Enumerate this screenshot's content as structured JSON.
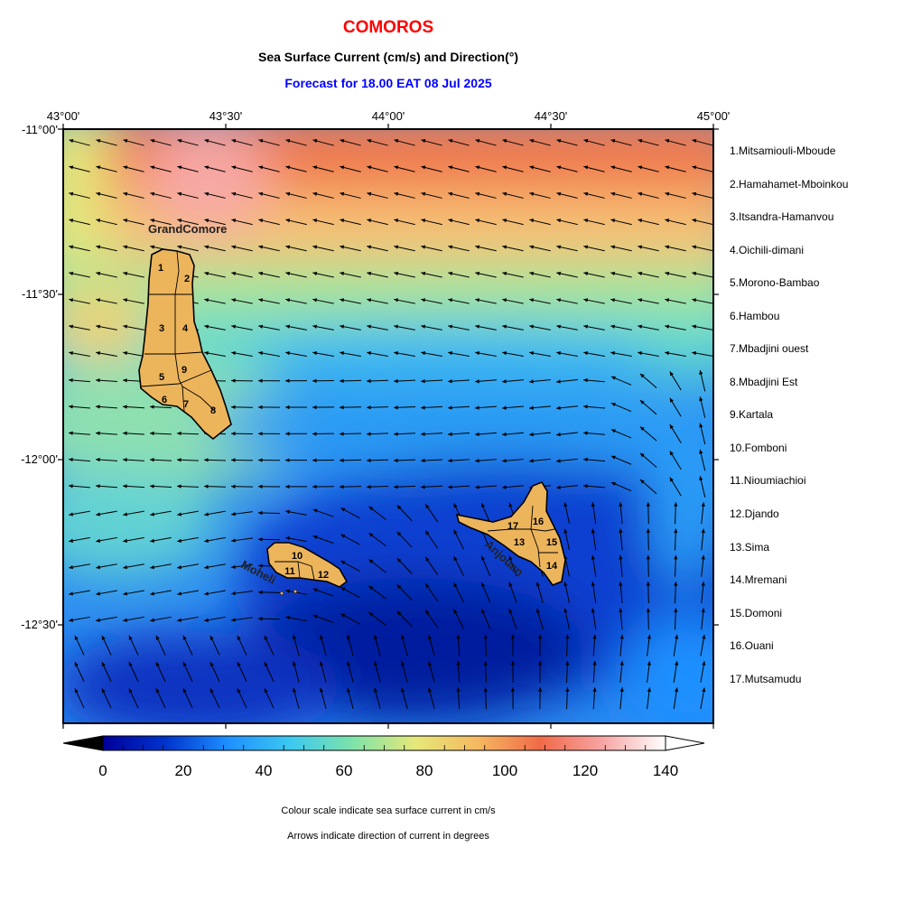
{
  "header": {
    "title": "COMOROS",
    "subtitle": "Sea Surface Current (cm/s) and Direction(°)",
    "forecast": "Forecast for  18.00 EAT 08 Jul 2025"
  },
  "map": {
    "top_ticks": [
      "43°00'",
      "43°30'",
      "44°00'",
      "44°30'",
      "45°00'"
    ],
    "left_ticks": [
      "-11°00'",
      "-11°30'",
      "-12°00'",
      "-12°30'"
    ],
    "island_labels": {
      "grand_comore": "GrandComore",
      "moheli": "Moheli",
      "anjouan": "Anjouan"
    },
    "region_numbers": [
      {
        "n": "1",
        "island": "grand_comore"
      },
      {
        "n": "2",
        "island": "grand_comore"
      },
      {
        "n": "3",
        "island": "grand_comore"
      },
      {
        "n": "4",
        "island": "grand_comore"
      },
      {
        "n": "5",
        "island": "grand_comore"
      },
      {
        "n": "6",
        "island": "grand_comore"
      },
      {
        "n": "7",
        "island": "grand_comore"
      },
      {
        "n": "8",
        "island": "grand_comore"
      },
      {
        "n": "9",
        "island": "grand_comore"
      },
      {
        "n": "10",
        "island": "moheli"
      },
      {
        "n": "11",
        "island": "moheli"
      },
      {
        "n": "12",
        "island": "moheli"
      },
      {
        "n": "13",
        "island": "anjouan"
      },
      {
        "n": "14",
        "island": "anjouan"
      },
      {
        "n": "15",
        "island": "anjouan"
      },
      {
        "n": "16",
        "island": "anjouan"
      },
      {
        "n": "17",
        "island": "anjouan"
      }
    ],
    "colors": {
      "land": "#ecb55c",
      "arrow": "#000000"
    }
  },
  "regions_legend": [
    "1.Mitsamiouli-Mboude",
    "2.Hamahamet-Mboinkou",
    "3.Itsandra-Hamanvou",
    "4.Oichili-dimani",
    "5.Morono-Bambao",
    "6.Hambou",
    "7.Mbadjini ouest",
    "8.Mbadjini Est",
    "9.Kartala",
    "10.Fomboni",
    "11.Nioumiachioi",
    "12.Djando",
    "13.Sima",
    "14.Mremani",
    "15.Domoni",
    "16.Ouani",
    "17.Mutsamudu"
  ],
  "colorbar": {
    "ticks": [
      "0",
      "20",
      "40",
      "60",
      "80",
      "100",
      "120",
      "140"
    ],
    "colors": [
      "#00009a",
      "#0033cc",
      "#1e90ff",
      "#3cc8f0",
      "#7ee3a8",
      "#e6e87a",
      "#f5b860",
      "#f06a48",
      "#f7a5a5",
      "#ffffff"
    ]
  },
  "notes": [
    "Colour scale indicate sea surface current in cm/s",
    "Arrows indicate direction of current in degrees"
  ]
}
